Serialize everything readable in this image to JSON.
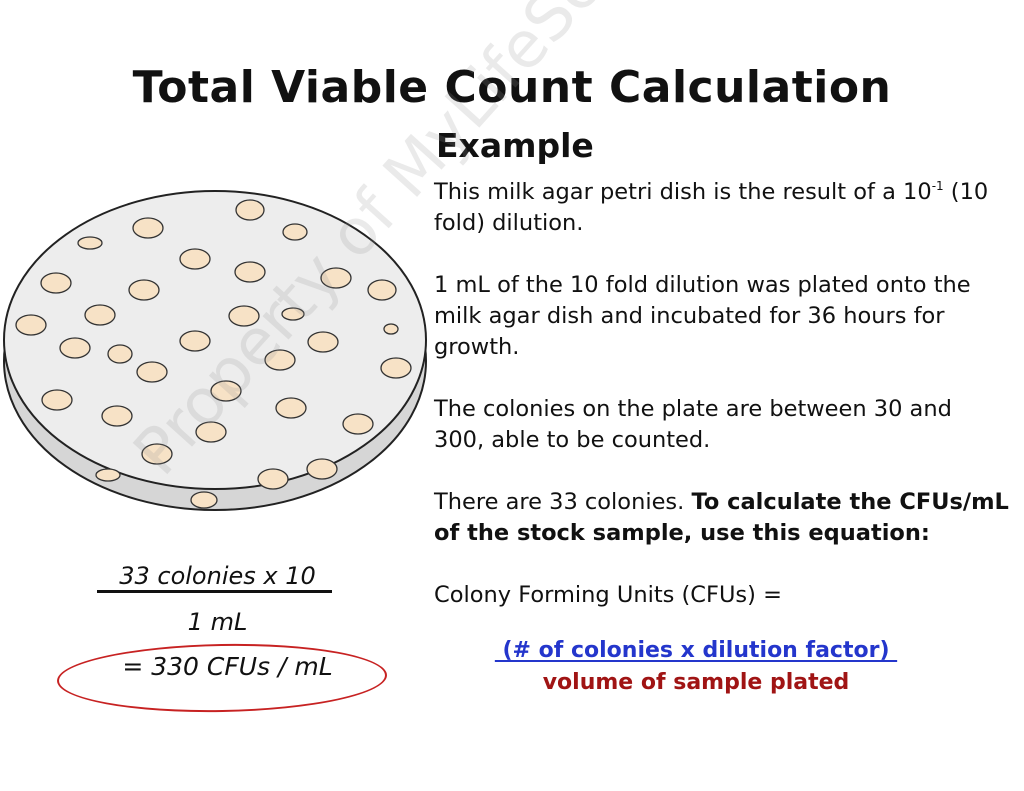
{
  "slide": {
    "title": "Total Viable Count Calculation",
    "subtitle": "Example",
    "paragraph1_pre": "This milk agar petri dish is the result of a 10",
    "paragraph1_sup": "-1",
    "paragraph1_post": " (10 fold) dilution.",
    "paragraph2": "1 mL of the 10 fold dilution was plated onto the milk agar dish and incubated for 36 hours for growth.",
    "paragraph3": "The colonies on the plate are between 30 and 300, able to be counted.",
    "paragraph4_plain": "There are 33 colonies. ",
    "paragraph4_bold": "To calculate the CFUs/mL of the stock sample, use this equation:",
    "formula_label": "Colony Forming Units (CFUs) =",
    "formula_numerator": " (# of colonies x dilution factor) ",
    "formula_denominator": "volume of sample plated"
  },
  "handwritten": {
    "numerator": "33 colonies x 10",
    "denominator": "1 mL",
    "result": "= 330 CFUs / mL"
  },
  "colors": {
    "colony_fill": "#f7e2c6",
    "agar_fill": "#ededed",
    "dish_side": "#d6d6d6",
    "numerator": "#2436cc",
    "denominator": "#a01414",
    "ellipse": "#c72222"
  },
  "watermark": "Property of MyLifeScienceCareer.com"
}
